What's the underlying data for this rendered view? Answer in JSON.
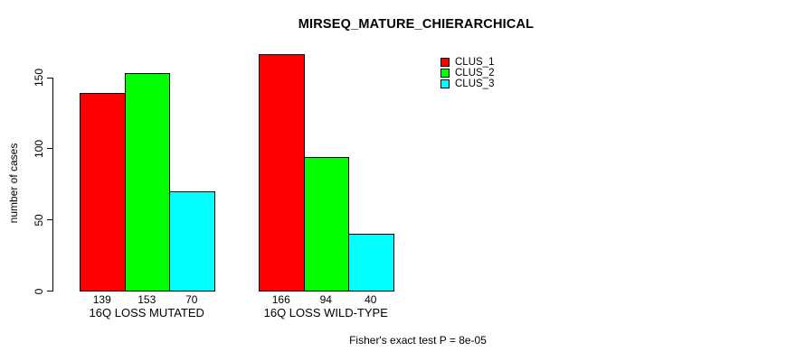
{
  "title": "MIRSEQ_MATURE_CHIERARCHICAL",
  "colors": {
    "background": "#ffffff",
    "axis": "#000000",
    "text": "#000000",
    "clus_1": "#ff0000",
    "clus_2": "#00ff00",
    "clus_3": "#00ffff"
  },
  "chart_data": {
    "type": "bar",
    "title": "MIRSEQ_MATURE_CHIERARCHICAL",
    "xlabel": "",
    "ylabel": "number of cases",
    "categories": [
      "16Q LOSS MUTATED",
      "16Q LOSS WILD-TYPE"
    ],
    "series": [
      {
        "name": "CLUS_1",
        "color": "#ff0000",
        "values": [
          139,
          166
        ]
      },
      {
        "name": "CLUS_2",
        "color": "#00ff00",
        "values": [
          153,
          94
        ]
      },
      {
        "name": "CLUS_3",
        "color": "#00ffff",
        "values": [
          70,
          40
        ]
      }
    ],
    "bar_value_labels": [
      [
        "139",
        "153",
        "70"
      ],
      [
        "166",
        "94",
        "40"
      ]
    ],
    "yticks": [
      0,
      50,
      100,
      150
    ],
    "ylim": [
      0,
      166
    ],
    "grid": false,
    "legend_position": "top-right",
    "legend_entries": [
      "CLUS_1",
      "CLUS_2",
      "CLUS_3"
    ],
    "annotation": "Fisher's exact test P = 8e-05"
  }
}
